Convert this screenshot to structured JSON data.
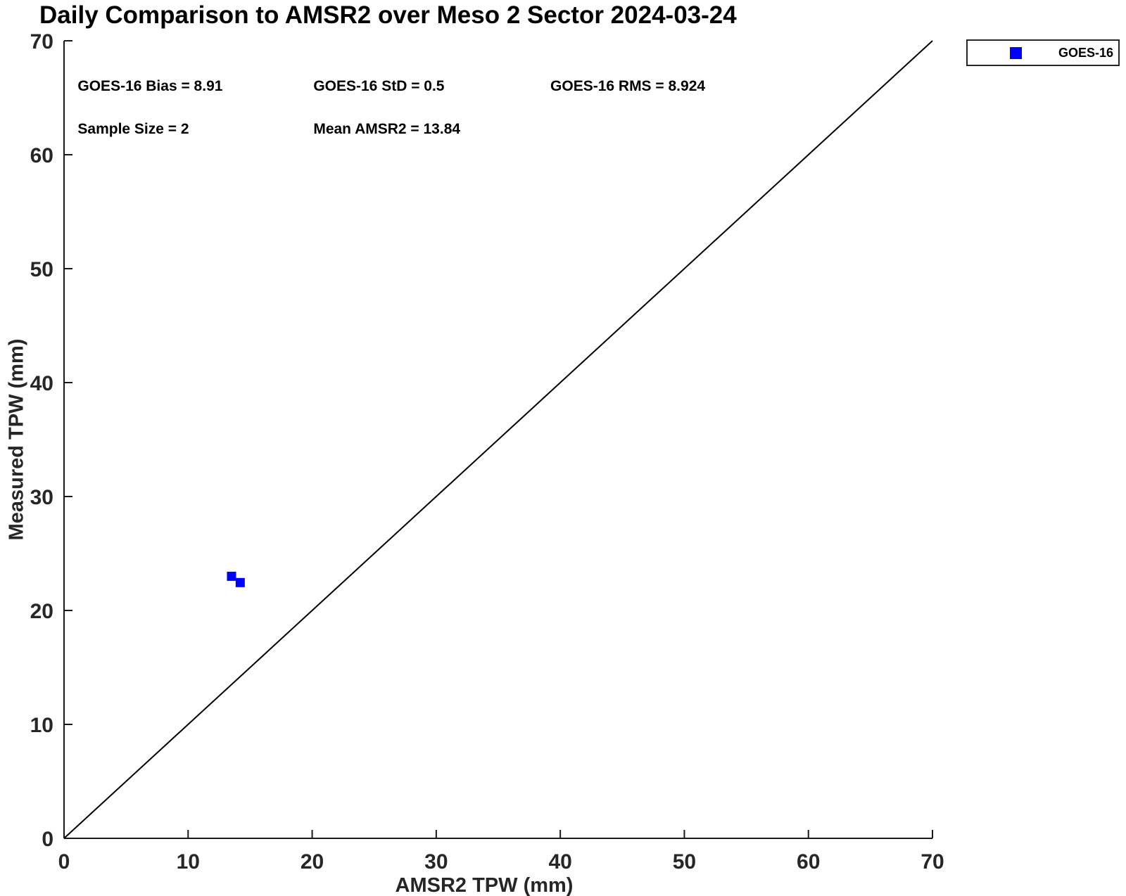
{
  "title": "Daily Comparison to AMSR2 over Meso 2 Sector 2024-03-24",
  "chart_data": {
    "type": "scatter",
    "title": "Daily Comparison to AMSR2 over Meso 2 Sector 2024-03-24",
    "xlabel": "AMSR2 TPW (mm)",
    "ylabel": "Measured TPW (mm)",
    "xlim": [
      0,
      70
    ],
    "ylim": [
      0,
      70
    ],
    "xticks": [
      0,
      10,
      20,
      30,
      40,
      50,
      60,
      70
    ],
    "yticks": [
      0,
      10,
      20,
      30,
      40,
      50,
      60,
      70
    ],
    "grid": false,
    "legend": {
      "position": "top-right-outside",
      "entries": [
        {
          "label": "GOES-16",
          "marker": "square",
          "color": "#0000ff"
        }
      ]
    },
    "series": [
      {
        "name": "GOES-16",
        "marker": "square",
        "marker_size_px": 13,
        "color": "#0000ff",
        "points": [
          [
            13.5,
            23.0
          ],
          [
            14.2,
            22.45
          ]
        ]
      }
    ],
    "reference_line": {
      "name": "identity-1-to-1-line",
      "x": [
        0,
        70
      ],
      "y": [
        0,
        70
      ],
      "color": "#000000"
    },
    "annotations": [
      {
        "id": "bias",
        "text": "GOES-16 Bias = 8.91",
        "x": 1.1,
        "y": 66.0
      },
      {
        "id": "std",
        "text": "GOES-16 StD = 0.5",
        "x": 20.1,
        "y": 66.0
      },
      {
        "id": "rms",
        "text": "GOES-16 RMS = 8.924",
        "x": 39.2,
        "y": 66.0
      },
      {
        "id": "sample-size",
        "text": "Sample Size = 2",
        "x": 1.1,
        "y": 62.2
      },
      {
        "id": "mean-amsr2",
        "text": "Mean AMSR2 = 13.84",
        "x": 20.1,
        "y": 62.2
      }
    ]
  },
  "colors": {
    "marker": "#0000ff",
    "reference_line": "#000000",
    "axis": "#1a1a1a",
    "tick_text": "#262626",
    "title_text": "#000000",
    "background": "#ffffff"
  }
}
